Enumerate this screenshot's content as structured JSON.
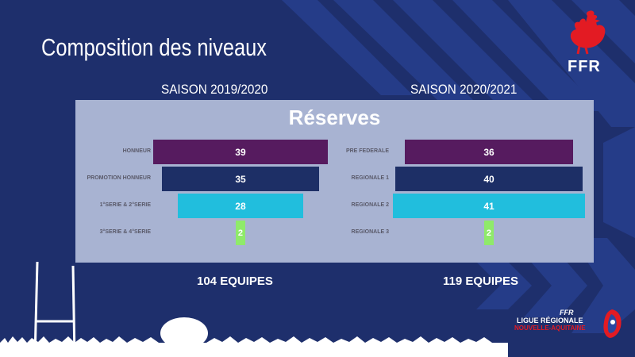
{
  "slide": {
    "title": "Composition des niveaux",
    "season_left": "SAISON 2019/2020",
    "season_right": "SAISON 2020/2021",
    "panel_title": "Réserves",
    "total_left": "104 EQUIPES",
    "total_right": "119 EQUIPES"
  },
  "logo": {
    "ffr": "FFR",
    "icon": "rooster-icon"
  },
  "league_logo": {
    "ffr": "FFR",
    "line1": "LIGUE RÉGIONALE",
    "line2": "NOUVELLE-AQUITAINE"
  },
  "colors": {
    "background": "#1e2f6c",
    "panel": "#a8b3d2",
    "purple": "#561b5f",
    "navy": "#1d2f66",
    "cyan": "#21bedd",
    "lightgreen": "#8fea6a",
    "ffr_red": "#e31b23"
  },
  "chart_data": [
    {
      "type": "bar",
      "title": "",
      "categories": [
        "HONNEUR",
        "PROMOTION HONNEUR",
        "1°SERIE &  2°SERIE",
        "3°SERIE & 4°SERIE"
      ],
      "values": [
        39,
        35,
        28,
        2
      ],
      "colors": [
        "#561b5f",
        "#1d2f66",
        "#21bedd",
        "#8fea6a"
      ]
    },
    {
      "type": "bar",
      "title": "",
      "categories": [
        "PRE FEDERALE",
        "REGIONALE 1",
        "REGIONALE 2",
        "REGIONALE 3"
      ],
      "values": [
        36,
        40,
        41,
        2
      ],
      "colors": [
        "#561b5f",
        "#1d2f66",
        "#21bedd",
        "#8fea6a"
      ]
    }
  ]
}
